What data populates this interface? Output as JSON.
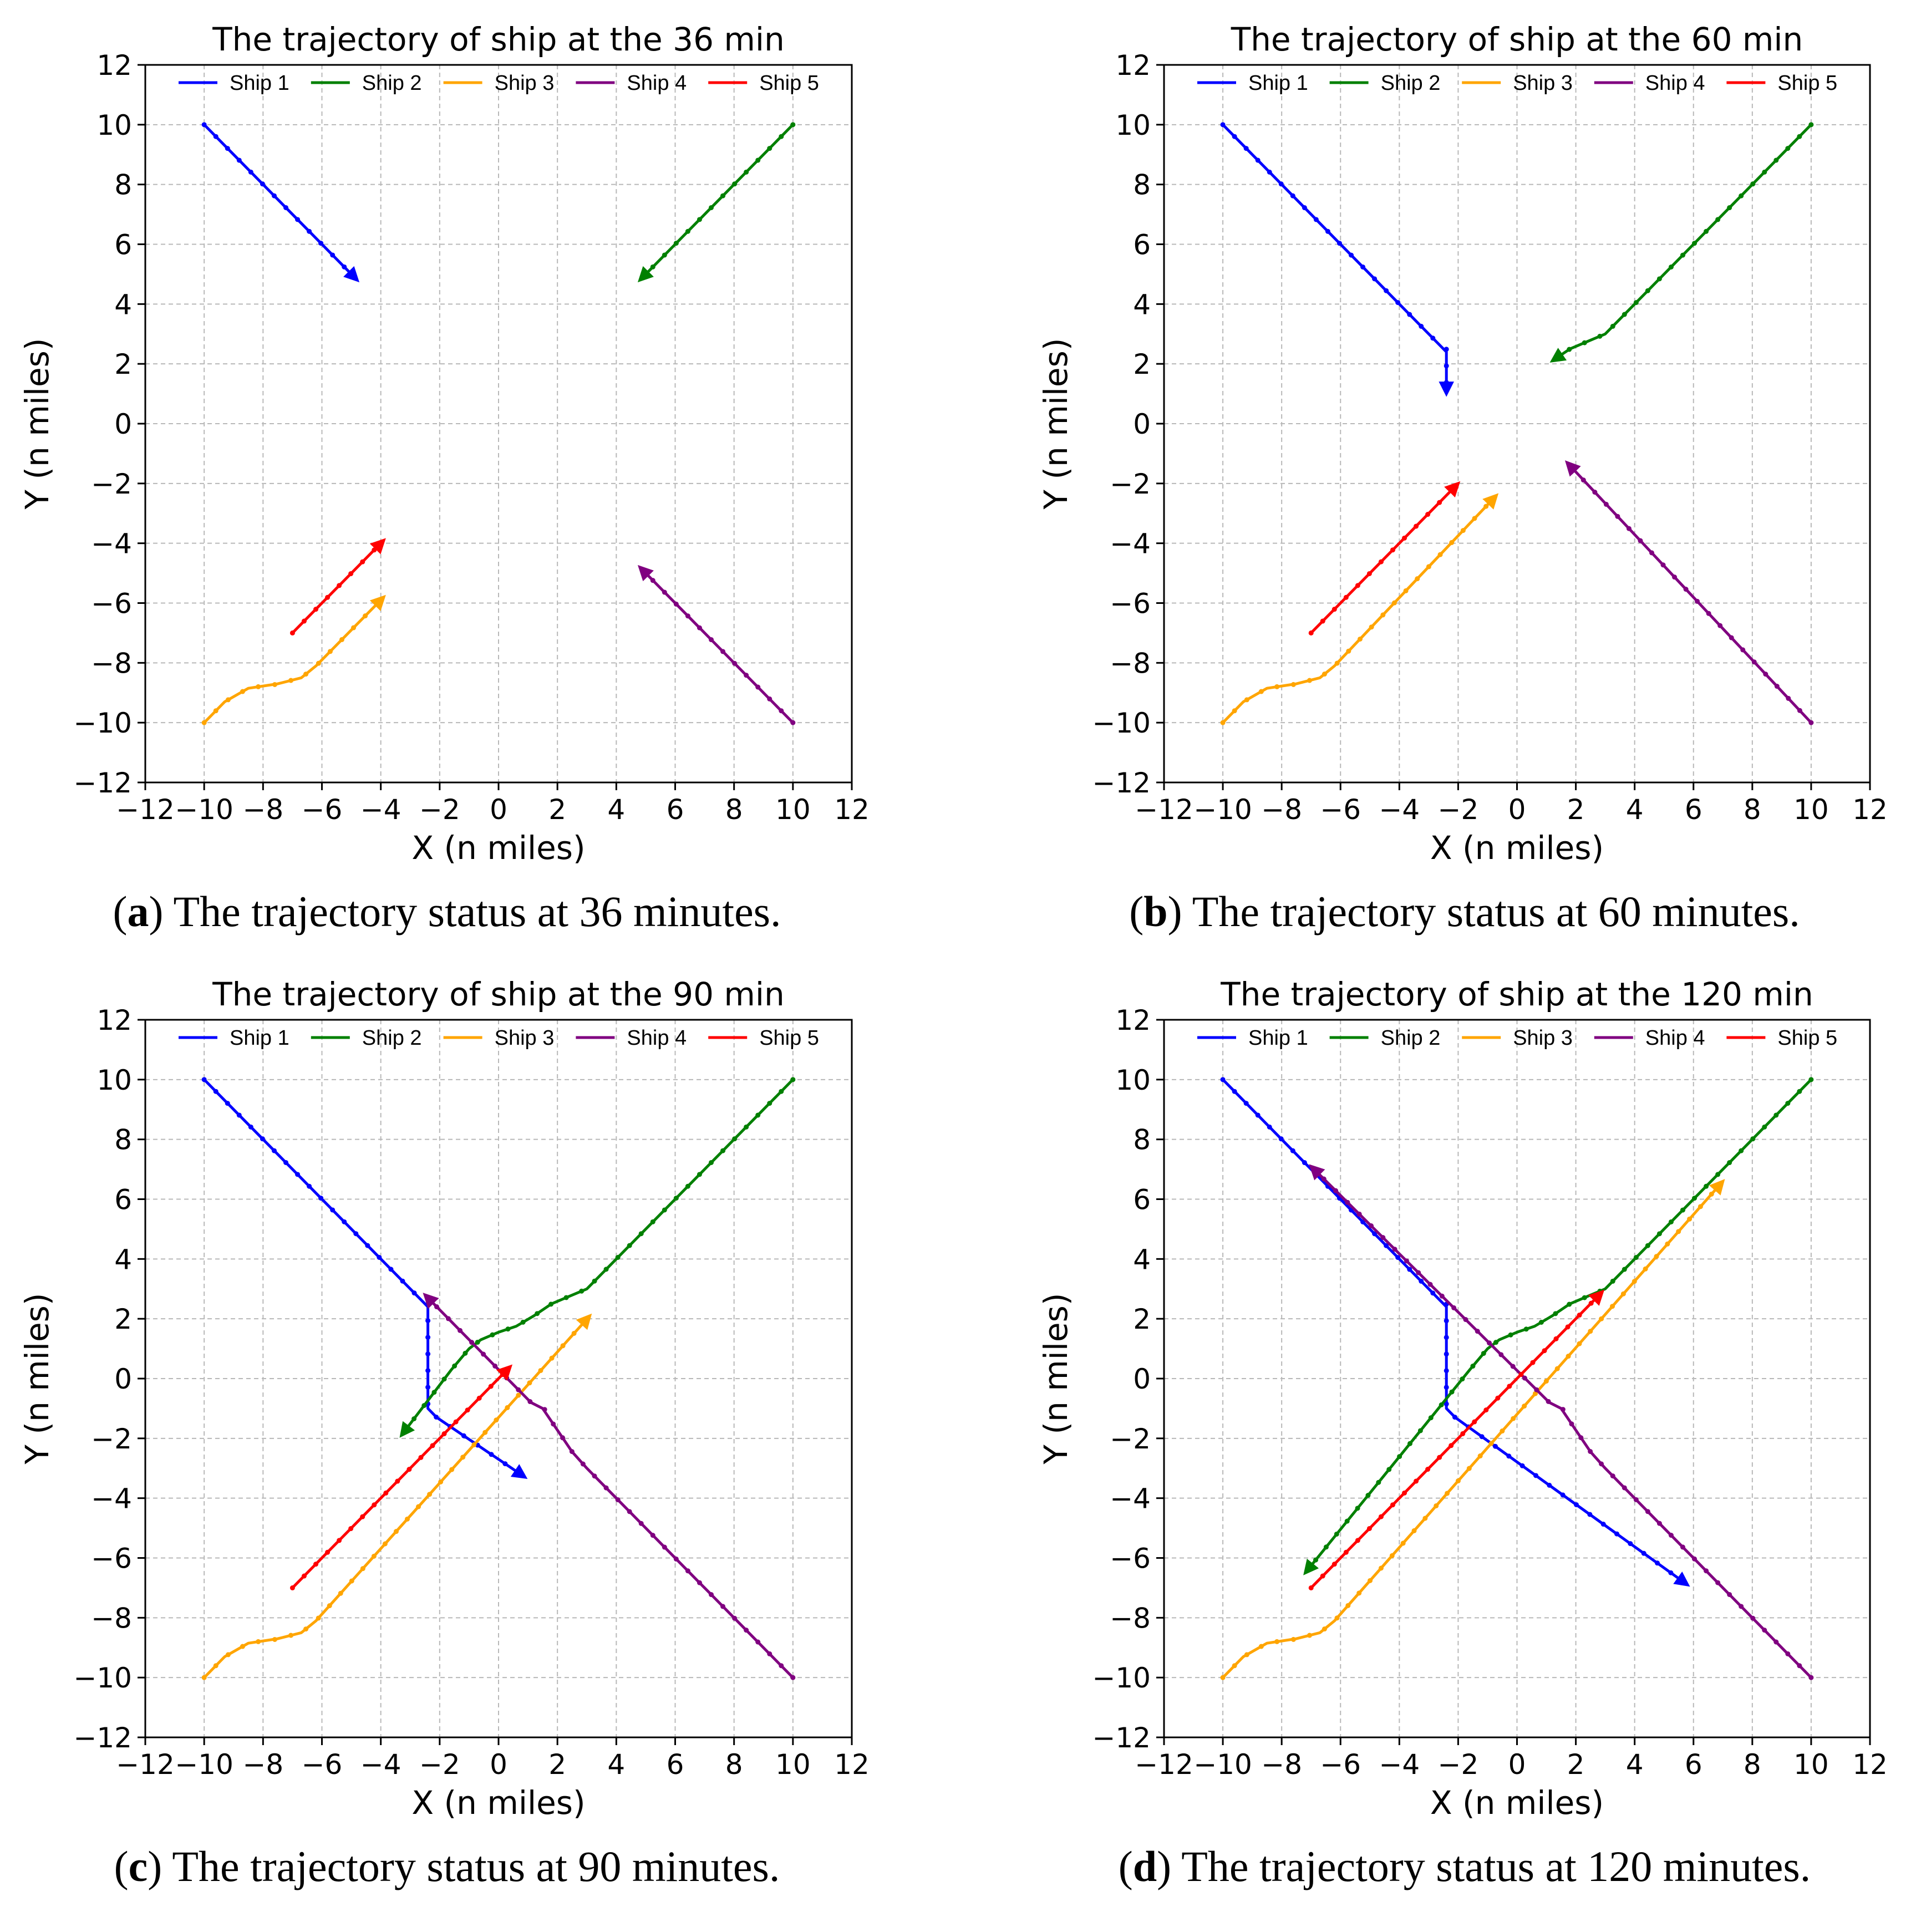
{
  "colors": {
    "Ship 1": "#0000ff",
    "Ship 2": "#008000",
    "Ship 3": "#ffa500",
    "Ship 4": "#800080",
    "Ship 5": "#ff0000"
  },
  "chart_data": [
    {
      "type": "line",
      "title": "The trajectory of ship at the 36 min",
      "xlabel": "X (n miles)",
      "ylabel": "Y (n miles)",
      "xlim": [
        -12,
        12
      ],
      "ylim": [
        -12,
        12
      ],
      "xticks": [
        -12,
        -10,
        -8,
        -6,
        -4,
        -2,
        0,
        2,
        4,
        6,
        8,
        10,
        12
      ],
      "yticks": [
        -12,
        -10,
        -8,
        -6,
        -4,
        -2,
        0,
        2,
        4,
        6,
        8,
        10,
        12
      ],
      "grid": true,
      "legend": [
        "Ship 1",
        "Ship 2",
        "Ship 3",
        "Ship 4",
        "Ship 5"
      ],
      "legend_position": "top",
      "caption_letter": "a",
      "caption_text": " The trajectory status at 36 minutes.",
      "series": [
        {
          "name": "Ship 1",
          "points": [
            [
              -10,
              10
            ],
            [
              -4.8,
              4.8
            ]
          ]
        },
        {
          "name": "Ship 2",
          "points": [
            [
              10,
              10
            ],
            [
              4.8,
              4.8
            ]
          ]
        },
        {
          "name": "Ship 3",
          "points": [
            [
              -10,
              -10
            ],
            [
              -9.3,
              -9.3
            ],
            [
              -8.5,
              -8.85
            ],
            [
              -7.5,
              -8.7
            ],
            [
              -6.7,
              -8.5
            ],
            [
              -6.2,
              -8.1
            ],
            [
              -3.9,
              -5.8
            ]
          ]
        },
        {
          "name": "Ship 4",
          "points": [
            [
              10,
              -10
            ],
            [
              4.8,
              -4.8
            ]
          ]
        },
        {
          "name": "Ship 5",
          "points": [
            [
              -7,
              -7
            ],
            [
              -3.9,
              -3.9
            ]
          ]
        }
      ]
    },
    {
      "type": "line",
      "title": "The trajectory of ship at the 60 min",
      "xlabel": "X (n miles)",
      "ylabel": "Y (n miles)",
      "xlim": [
        -12,
        12
      ],
      "ylim": [
        -12,
        12
      ],
      "xticks": [
        -12,
        -10,
        -8,
        -6,
        -4,
        -2,
        0,
        2,
        4,
        6,
        8,
        10,
        12
      ],
      "yticks": [
        -12,
        -10,
        -8,
        -6,
        -4,
        -2,
        0,
        2,
        4,
        6,
        8,
        10,
        12
      ],
      "grid": true,
      "legend": [
        "Ship 1",
        "Ship 2",
        "Ship 3",
        "Ship 4",
        "Ship 5"
      ],
      "legend_position": "top",
      "caption_letter": "b",
      "caption_text": " The trajectory status at 60 minutes.",
      "series": [
        {
          "name": "Ship 1",
          "points": [
            [
              -10,
              10
            ],
            [
              -2.4,
              2.4
            ],
            [
              -2.4,
              1.0
            ]
          ]
        },
        {
          "name": "Ship 2",
          "points": [
            [
              10,
              10
            ],
            [
              3.0,
              3.0
            ],
            [
              2.4,
              2.75
            ],
            [
              1.8,
              2.5
            ],
            [
              1.2,
              2.1
            ]
          ]
        },
        {
          "name": "Ship 3",
          "points": [
            [
              -10,
              -10
            ],
            [
              -9.3,
              -9.3
            ],
            [
              -8.5,
              -8.85
            ],
            [
              -7.5,
              -8.7
            ],
            [
              -6.7,
              -8.5
            ],
            [
              -6.2,
              -8.1
            ],
            [
              -0.7,
              -2.4
            ]
          ]
        },
        {
          "name": "Ship 4",
          "points": [
            [
              10,
              -10
            ],
            [
              1.7,
              -1.3
            ]
          ]
        },
        {
          "name": "Ship 5",
          "points": [
            [
              -7,
              -7
            ],
            [
              -2.0,
              -2.0
            ]
          ]
        }
      ]
    },
    {
      "type": "line",
      "title": "The trajectory of ship at the 90 min",
      "xlabel": "X (n miles)",
      "ylabel": "Y (n miles)",
      "xlim": [
        -12,
        12
      ],
      "ylim": [
        -12,
        12
      ],
      "xticks": [
        -12,
        -10,
        -8,
        -6,
        -4,
        -2,
        0,
        2,
        4,
        6,
        8,
        10,
        12
      ],
      "yticks": [
        -12,
        -10,
        -8,
        -6,
        -4,
        -2,
        0,
        2,
        4,
        6,
        8,
        10,
        12
      ],
      "grid": true,
      "legend": [
        "Ship 1",
        "Ship 2",
        "Ship 3",
        "Ship 4",
        "Ship 5"
      ],
      "legend_position": "top",
      "caption_letter": "c",
      "caption_text": " The trajectory status at 90 minutes.",
      "series": [
        {
          "name": "Ship 1",
          "points": [
            [
              -10,
              10
            ],
            [
              -2.4,
              2.4
            ],
            [
              -2.4,
              -1.0
            ],
            [
              -2.1,
              -1.3
            ],
            [
              0.9,
              -3.3
            ]
          ]
        },
        {
          "name": "Ship 2",
          "points": [
            [
              10,
              10
            ],
            [
              3.0,
              3.0
            ],
            [
              2.4,
              2.75
            ],
            [
              1.8,
              2.5
            ],
            [
              1.2,
              2.1
            ],
            [
              0.6,
              1.75
            ],
            [
              0.0,
              1.55
            ],
            [
              -0.6,
              1.3
            ],
            [
              -1.0,
              1.0
            ],
            [
              -1.6,
              0.3
            ],
            [
              -3.3,
              -1.9
            ]
          ]
        },
        {
          "name": "Ship 3",
          "points": [
            [
              -10,
              -10
            ],
            [
              -9.3,
              -9.3
            ],
            [
              -8.5,
              -8.85
            ],
            [
              -7.5,
              -8.7
            ],
            [
              -6.7,
              -8.5
            ],
            [
              -6.2,
              -8.1
            ],
            [
              3.1,
              2.1
            ]
          ]
        },
        {
          "name": "Ship 4",
          "points": [
            [
              10,
              -10
            ],
            [
              3.0,
              -3.0
            ],
            [
              2.5,
              -2.45
            ],
            [
              1.5,
              -1.0
            ],
            [
              1.1,
              -0.8
            ],
            [
              -2.5,
              2.8
            ]
          ]
        },
        {
          "name": "Ship 5",
          "points": [
            [
              -7,
              -7
            ],
            [
              0.4,
              0.4
            ]
          ]
        }
      ]
    },
    {
      "type": "line",
      "title": "The trajectory of ship at the 120 min",
      "xlabel": "X (n miles)",
      "ylabel": "Y (n miles)",
      "xlim": [
        -12,
        12
      ],
      "ylim": [
        -12,
        12
      ],
      "xticks": [
        -12,
        -10,
        -8,
        -6,
        -4,
        -2,
        0,
        2,
        4,
        6,
        8,
        10,
        12
      ],
      "yticks": [
        -12,
        -10,
        -8,
        -6,
        -4,
        -2,
        0,
        2,
        4,
        6,
        8,
        10,
        12
      ],
      "grid": true,
      "legend": [
        "Ship 1",
        "Ship 2",
        "Ship 3",
        "Ship 4",
        "Ship 5"
      ],
      "legend_position": "top",
      "caption_letter": "d",
      "caption_text": " The trajectory status at 120 minutes.",
      "series": [
        {
          "name": "Ship 1",
          "points": [
            [
              -10,
              10
            ],
            [
              -2.4,
              2.4
            ],
            [
              -2.4,
              -1.0
            ],
            [
              -2.1,
              -1.3
            ],
            [
              5.8,
              -6.9
            ]
          ]
        },
        {
          "name": "Ship 2",
          "points": [
            [
              10,
              10
            ],
            [
              3.0,
              3.0
            ],
            [
              2.4,
              2.75
            ],
            [
              1.8,
              2.5
            ],
            [
              1.2,
              2.1
            ],
            [
              0.6,
              1.75
            ],
            [
              0.0,
              1.55
            ],
            [
              -0.6,
              1.3
            ],
            [
              -1.0,
              1.0
            ],
            [
              -1.6,
              0.3
            ],
            [
              -7.2,
              -6.5
            ]
          ]
        },
        {
          "name": "Ship 3",
          "points": [
            [
              -10,
              -10
            ],
            [
              -9.3,
              -9.3
            ],
            [
              -8.5,
              -8.85
            ],
            [
              -7.5,
              -8.7
            ],
            [
              -6.7,
              -8.5
            ],
            [
              -6.2,
              -8.1
            ],
            [
              7.0,
              6.6
            ]
          ]
        },
        {
          "name": "Ship 4",
          "points": [
            [
              10,
              -10
            ],
            [
              3.0,
              -3.0
            ],
            [
              2.5,
              -2.45
            ],
            [
              1.5,
              -1.0
            ],
            [
              1.1,
              -0.8
            ],
            [
              -7.0,
              7.1
            ]
          ]
        },
        {
          "name": "Ship 5",
          "points": [
            [
              -7,
              -7
            ],
            [
              2.9,
              2.9
            ]
          ]
        }
      ]
    }
  ]
}
